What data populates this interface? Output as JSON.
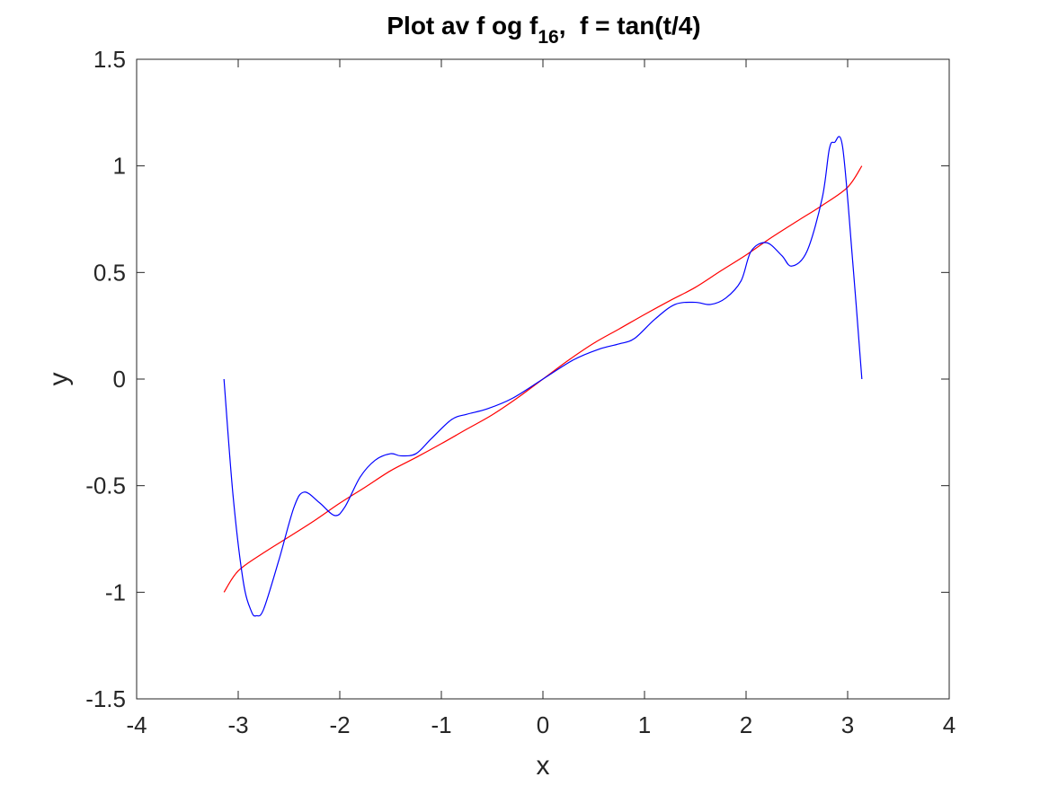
{
  "chart_data": {
    "type": "line",
    "title": {
      "main": "Plot av f og f",
      "subscript": "16",
      "tail": ",  f = tan(t/4)"
    },
    "xlabel": "x",
    "ylabel": "y",
    "xlim": [
      -4,
      4
    ],
    "ylim": [
      -1.5,
      1.5
    ],
    "xticks": [
      -4,
      -3,
      -2,
      -1,
      0,
      1,
      2,
      3,
      4
    ],
    "xtick_labels": [
      "-4",
      "-3",
      "-2",
      "-1",
      "0",
      "1",
      "2",
      "3",
      "4"
    ],
    "yticks": [
      -1.5,
      -1,
      -0.5,
      0,
      0.5,
      1,
      1.5
    ],
    "ytick_labels": [
      "-1.5",
      "-1",
      "-0.5",
      "0",
      "0.5",
      "1",
      "1.5"
    ],
    "grid": false,
    "colors": {
      "f": "#ff0000",
      "f16": "#0000ff",
      "axes": "#262626"
    },
    "series": [
      {
        "key": "f",
        "color": "#ff0000",
        "x": [
          -3.14,
          -3.0,
          -2.75,
          -2.5,
          -2.25,
          -2.0,
          -1.75,
          -1.5,
          -1.25,
          -1.0,
          -0.75,
          -0.5,
          -0.25,
          0.0,
          0.25,
          0.5,
          0.75,
          1.0,
          1.25,
          1.5,
          1.75,
          2.0,
          2.25,
          2.5,
          2.75,
          3.0,
          3.14
        ],
        "y": [
          -1.0,
          -0.9,
          -0.815,
          -0.74,
          -0.664,
          -0.582,
          -0.507,
          -0.43,
          -0.368,
          -0.303,
          -0.235,
          -0.168,
          -0.088,
          0.0,
          0.088,
          0.168,
          0.235,
          0.303,
          0.368,
          0.43,
          0.507,
          0.582,
          0.664,
          0.74,
          0.815,
          0.9,
          1.0
        ]
      },
      {
        "key": "f16",
        "color": "#0000ff",
        "x": [
          -3.14,
          -3.05,
          -2.95,
          -2.87,
          -2.82,
          -2.75,
          -2.6,
          -2.45,
          -2.35,
          -2.2,
          -2.05,
          -1.95,
          -1.8,
          -1.65,
          -1.5,
          -1.4,
          -1.25,
          -1.1,
          -0.9,
          -0.75,
          -0.55,
          -0.3,
          0.0,
          0.3,
          0.55,
          0.75,
          0.9,
          1.1,
          1.3,
          1.5,
          1.65,
          1.8,
          1.95,
          2.05,
          2.2,
          2.35,
          2.45,
          2.6,
          2.75,
          2.82,
          2.87,
          2.95,
          3.05,
          3.14
        ],
        "y": [
          0.0,
          -0.55,
          -0.95,
          -1.09,
          -1.11,
          -1.08,
          -0.85,
          -0.6,
          -0.53,
          -0.58,
          -0.64,
          -0.6,
          -0.46,
          -0.38,
          -0.35,
          -0.36,
          -0.35,
          -0.28,
          -0.19,
          -0.165,
          -0.14,
          -0.09,
          0.0,
          0.09,
          0.14,
          0.165,
          0.19,
          0.28,
          0.35,
          0.36,
          0.35,
          0.38,
          0.46,
          0.6,
          0.64,
          0.58,
          0.53,
          0.6,
          0.85,
          1.08,
          1.11,
          1.09,
          0.55,
          0.0
        ]
      }
    ]
  }
}
